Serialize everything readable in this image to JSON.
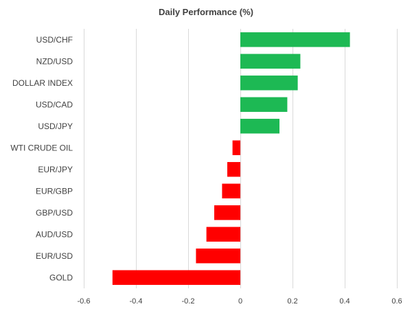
{
  "chart_data": {
    "type": "bar",
    "orientation": "horizontal",
    "title": "Daily Performance (%)",
    "xlabel": "",
    "ylabel": "",
    "categories": [
      "USD/CHF",
      "NZD/USD",
      "DOLLAR INDEX",
      "USD/CAD",
      "USD/JPY",
      "WTI CRUDE OIL",
      "EUR/JPY",
      "EUR/GBP",
      "GBP/USD",
      "AUD/USD",
      "EUR/USD",
      "GOLD"
    ],
    "values": [
      0.42,
      0.23,
      0.22,
      0.18,
      0.15,
      -0.03,
      -0.05,
      -0.07,
      -0.1,
      -0.13,
      -0.17,
      -0.49
    ],
    "xlim": [
      -0.6,
      0.6
    ],
    "xticks": [
      -0.6,
      -0.4,
      -0.2,
      0,
      0.2,
      0.4,
      0.6
    ],
    "xtick_labels": [
      "-0.6",
      "-0.4",
      "-0.2",
      "0",
      "0.2",
      "0.4",
      "0.6"
    ],
    "grid": true,
    "colors": {
      "positive": "#1db954",
      "negative": "#ff0000",
      "grid": "#d9d9d9",
      "text": "#404040"
    }
  }
}
